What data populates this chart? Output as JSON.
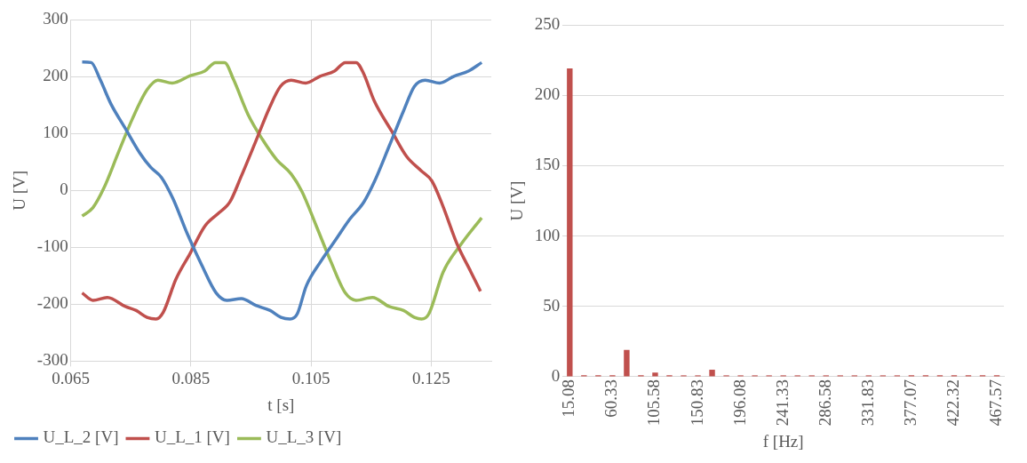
{
  "chart_data": [
    {
      "type": "line",
      "xlabel": "t [s]",
      "ylabel": "U [V]",
      "xlim": [
        0.065,
        0.135
      ],
      "xticks": [
        0.065,
        0.085,
        0.105,
        0.125
      ],
      "ylim": [
        -300,
        300
      ],
      "yticks": [
        -300,
        -200,
        -100,
        0,
        100,
        200,
        300
      ],
      "grid": true,
      "legend": "bottom",
      "marker": "none",
      "line_style": "solid",
      "series": [
        {
          "name": "U_L_2 [V]",
          "color": "#4f81bd",
          "x": [
            0.0669,
            0.0684,
            0.0699,
            0.0717,
            0.0741,
            0.0765,
            0.0783,
            0.0801,
            0.082,
            0.0844,
            0.0868,
            0.0892,
            0.091,
            0.0934,
            0.0958,
            0.0982,
            0.1,
            0.1015,
            0.1027,
            0.1042,
            0.1066,
            0.109,
            0.1114,
            0.1138,
            0.1156,
            0.118,
            0.1204,
            0.1222,
            0.124,
            0.1264,
            0.1288,
            0.1312,
            0.1334
          ],
          "values": [
            226,
            225,
            195,
            152,
            109,
            66,
            41,
            23,
            -14,
            -76,
            -131,
            -180,
            -193,
            -190,
            -202,
            -211,
            -223,
            -226,
            -217,
            -168,
            -125,
            -88,
            -51,
            -20,
            17,
            78,
            140,
            183,
            194,
            189,
            201,
            210,
            225
          ]
        },
        {
          "name": "U_L_1 [V]",
          "color": "#c0504d",
          "x": [
            0.0669,
            0.0687,
            0.0711,
            0.0741,
            0.0759,
            0.0777,
            0.0792,
            0.0804,
            0.0825,
            0.0849,
            0.0873,
            0.0897,
            0.0915,
            0.0933,
            0.0957,
            0.0981,
            0.0999,
            0.1017,
            0.1041,
            0.1065,
            0.1089,
            0.1107,
            0.1125,
            0.1137,
            0.1155,
            0.1185,
            0.1209,
            0.1233,
            0.1251,
            0.1269,
            0.1293,
            0.1316,
            0.1332
          ],
          "values": [
            -180,
            -193,
            -188,
            -204,
            -211,
            -223,
            -226,
            -214,
            -156,
            -110,
            -63,
            -39,
            -20,
            23,
            84,
            146,
            183,
            194,
            189,
            201,
            210,
            225,
            225,
            207,
            158,
            103,
            60,
            35,
            17,
            -26,
            -94,
            -143,
            -177
          ]
        },
        {
          "name": "U_L_3 [V]",
          "color": "#9bbb59",
          "x": [
            0.0669,
            0.0687,
            0.0705,
            0.0729,
            0.0753,
            0.0777,
            0.0795,
            0.0819,
            0.0849,
            0.0873,
            0.0891,
            0.0906,
            0.0921,
            0.0945,
            0.0969,
            0.0993,
            0.1017,
            0.1035,
            0.1059,
            0.1083,
            0.1107,
            0.1125,
            0.1152,
            0.118,
            0.1204,
            0.1222,
            0.1234,
            0.1246,
            0.127,
            0.13,
            0.1334
          ],
          "values": [
            -45,
            -30,
            4,
            66,
            127,
            177,
            194,
            189,
            202,
            210,
            225,
            225,
            195,
            134,
            90,
            54,
            29,
            -2,
            -63,
            -125,
            -180,
            -193,
            -188,
            -204,
            -211,
            -223,
            -226,
            -217,
            -143,
            -94,
            -48
          ]
        }
      ]
    },
    {
      "type": "bar",
      "xlabel": "f [Hz]",
      "ylabel": "U [V]",
      "ylim": [
        0,
        250
      ],
      "yticks": [
        0,
        50,
        100,
        150,
        200,
        250
      ],
      "grid": "y",
      "legend": false,
      "categories": [
        "15.08",
        null,
        null,
        "60.33",
        null,
        null,
        "105.58",
        null,
        null,
        "150.83",
        null,
        null,
        "196.08",
        null,
        null,
        "241.33",
        null,
        null,
        "286.58",
        null,
        null,
        "331.83",
        null,
        null,
        "377.07",
        null,
        null,
        "422.32",
        null,
        null,
        "467.57"
      ],
      "series": [
        {
          "color": "#c0504d",
          "values": [
            219,
            1,
            1,
            1,
            19,
            1,
            3,
            1,
            1,
            1,
            5,
            1,
            1,
            1,
            1,
            1,
            1,
            1,
            1,
            1,
            1,
            1,
            1,
            1,
            1,
            1,
            1,
            1,
            1,
            1,
            1
          ]
        }
      ]
    }
  ]
}
